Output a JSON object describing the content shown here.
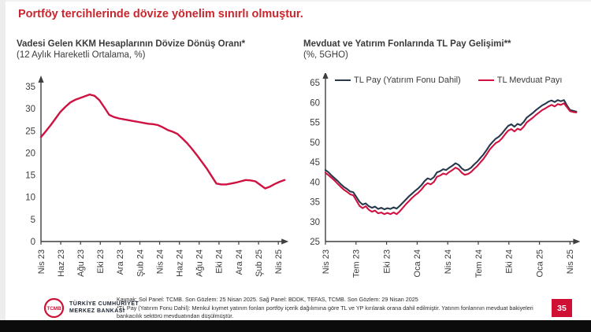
{
  "slide": {
    "title": "Portföy tercihlerinde dövize yönelim sınırlı olmuştur.",
    "page_number": "35"
  },
  "footer": {
    "source_line": "Kaynak: Sol Panel: TCMB. Son Gözlem: 25 Nisan 2025. Sağ Panel: BDDK, TEFAS, TCMB. Son Gözlem: 29 Nisan 2025",
    "footnote_line": "*TL Pay (Yatırım Fonu Dahil): Menkul kıymet yatırım fonları portföy içerik dağılımına göre TL ve YP kırılarak orana dahil edilmiştir. Yatırım fonlarının mevduat bakiyeleri bankacılık sektörü mevduatından düşülmüştür."
  },
  "logo": {
    "emblem_text": "TCMB",
    "org_line1": "TÜRKİYE CUMHURİYET",
    "org_line2": "MERKEZ BANKASI"
  },
  "colors": {
    "title_red": "#c9252c",
    "chart_red": "#cf1241",
    "chart_navy": "#27394c",
    "page_box_red": "#d00f34",
    "axis_gray": "#3f3f3f",
    "tick_text": "#3d3d3d"
  },
  "chart_data": [
    {
      "type": "line",
      "title": "Vadesi Gelen KKM Hesaplarının Dövize Dönüş Oranı*",
      "subtitle": "(12 Aylık Hareketli Ortalama, %)",
      "ylim": [
        0,
        35
      ],
      "yticks": [
        0,
        5,
        10,
        15,
        20,
        25,
        30,
        35
      ],
      "xticklabels": [
        "Nis 23",
        "Haz 23",
        "Ağu 23",
        "Eki 23",
        "Ara 23",
        "Şub 24",
        "Nis 24",
        "Haz 24",
        "Ağu 24",
        "Eki 24",
        "Ara 24",
        "Şub 25",
        "Nis 25"
      ],
      "grid": false,
      "legend_position": "none",
      "series": [
        {
          "color": "#cf1241",
          "values": [
            23.6,
            24.9,
            26.3,
            27.8,
            29.3,
            30.4,
            31.4,
            32.0,
            32.4,
            32.8,
            33.2,
            32.9,
            31.9,
            30.3,
            28.6,
            28.1,
            27.8,
            27.6,
            27.4,
            27.2,
            27.0,
            26.8,
            26.6,
            26.5,
            26.3,
            25.8,
            25.2,
            24.8,
            24.3,
            23.3,
            22.2,
            20.9,
            19.5,
            18.0,
            16.5,
            14.8,
            13.1,
            12.9,
            12.9,
            13.1,
            13.3,
            13.6,
            13.9,
            13.8,
            13.6,
            12.8,
            12.0,
            12.4,
            13.0,
            13.5,
            13.9
          ]
        }
      ]
    },
    {
      "type": "line",
      "title": "Mevduat ve Yatırım Fonlarında TL Pay Gelişimi**",
      "subtitle": "(%, 5GHO)",
      "ylim": [
        25,
        65
      ],
      "yticks": [
        25,
        30,
        35,
        40,
        45,
        50,
        55,
        60,
        65
      ],
      "xticklabels": [
        "Nis 23",
        "Tem 23",
        "Eki 23",
        "Oca 24",
        "Nis 24",
        "Tem 24",
        "Eki 24",
        "Oca 25",
        "Nis 25"
      ],
      "grid": false,
      "legend_position": "top",
      "series": [
        {
          "name": "TL Pay (Yatırım Fonu Dahil)",
          "color": "#27394c",
          "values": [
            43.0,
            42.4,
            41.6,
            40.9,
            40.2,
            39.4,
            38.7,
            38.2,
            37.6,
            37.4,
            36.2,
            35.0,
            34.3,
            34.6,
            33.9,
            33.5,
            33.8,
            33.2,
            33.5,
            33.1,
            33.4,
            33.2,
            33.6,
            33.3,
            34.0,
            34.8,
            35.6,
            36.4,
            37.1,
            37.8,
            38.4,
            39.2,
            40.2,
            40.9,
            40.6,
            41.2,
            42.4,
            42.7,
            43.2,
            43.0,
            43.6,
            44.1,
            44.7,
            44.3,
            43.4,
            42.9,
            43.1,
            43.6,
            44.4,
            45.1,
            46.0,
            46.9,
            48.0,
            49.2,
            50.1,
            50.9,
            51.4,
            52.2,
            53.2,
            54.1,
            54.5,
            53.9,
            54.6,
            54.3,
            55.1,
            56.2,
            56.8,
            57.4,
            58.1,
            58.7,
            59.3,
            59.7,
            60.2,
            60.5,
            60.1,
            60.6,
            60.3,
            60.6,
            59.2,
            58.1,
            57.9,
            57.7
          ]
        },
        {
          "name": "TL Mevduat Payı",
          "color": "#cf1241",
          "values": [
            42.3,
            41.7,
            41.0,
            40.3,
            39.5,
            38.7,
            38.0,
            37.5,
            36.9,
            36.6,
            35.3,
            34.0,
            33.4,
            33.9,
            33.0,
            32.5,
            32.8,
            32.1,
            32.3,
            31.9,
            32.2,
            31.9,
            32.3,
            31.9,
            32.6,
            33.5,
            34.4,
            35.2,
            36.0,
            36.7,
            37.3,
            38.1,
            39.1,
            39.7,
            39.4,
            40.0,
            41.3,
            41.6,
            42.1,
            41.9,
            42.5,
            43.0,
            43.6,
            43.2,
            42.3,
            41.8,
            42.0,
            42.5,
            43.3,
            44.0,
            44.9,
            45.8,
            46.9,
            48.1,
            49.0,
            49.8,
            50.2,
            51.0,
            52.0,
            52.9,
            53.3,
            52.7,
            53.4,
            53.1,
            53.9,
            55.0,
            55.6,
            56.2,
            56.9,
            57.5,
            58.1,
            58.5,
            59.0,
            59.4,
            59.0,
            59.6,
            59.4,
            59.8,
            58.8,
            57.8,
            57.6,
            57.5
          ]
        }
      ]
    }
  ]
}
